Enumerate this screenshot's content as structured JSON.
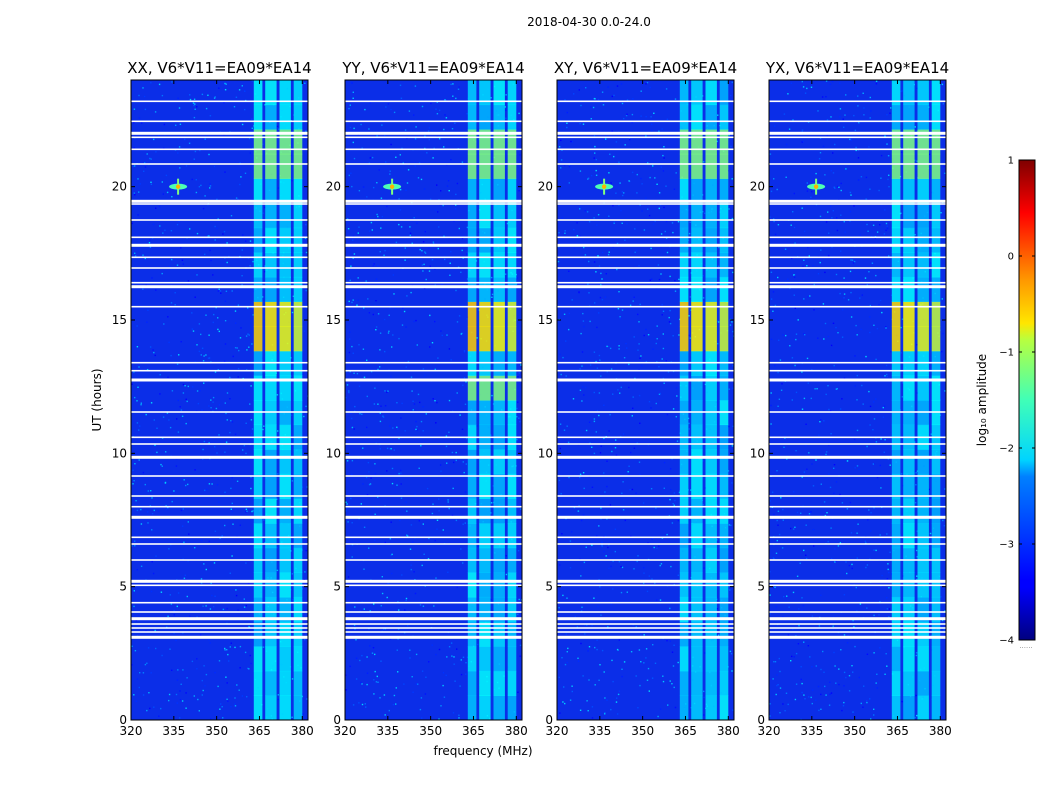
{
  "figure": {
    "suptitle": "2018-04-30 0.0-24.0"
  },
  "chart_data": {
    "type": "heatmap",
    "suptitle": "2018-04-30 0.0-24.0",
    "xlabel": "frequency (MHz)",
    "ylabel": "UT (hours)",
    "xlim": [
      320,
      382
    ],
    "ylim": [
      0,
      24
    ],
    "x_ticks": [
      "320",
      "335",
      "350",
      "365",
      "380"
    ],
    "y_ticks": [
      "0",
      "5",
      "10",
      "15",
      "20"
    ],
    "panels": [
      {
        "title": "XX, V6*V11=EA09*EA14",
        "intensity": 1.0
      },
      {
        "title": "YY, V6*V11=EA09*EA14",
        "intensity": 1.05
      },
      {
        "title": "XY, V6*V11=EA09*EA14",
        "intensity": 0.95
      },
      {
        "title": "YX, V6*V11=EA09*EA14",
        "intensity": 0.9
      }
    ],
    "colorbar": {
      "label": "log₁₀ amplitude",
      "range": [
        -4,
        1
      ],
      "ticks": [
        "1",
        "0",
        "−1",
        "−2",
        "−3",
        "−4"
      ],
      "colormap": "jet",
      "footnote": "......"
    },
    "rfi_bands_mhz": [
      [
        363,
        366
      ],
      [
        367,
        371
      ],
      [
        372,
        376
      ],
      [
        377,
        380
      ]
    ],
    "flagged_ut_hours": [
      3.1,
      3.3,
      3.45,
      3.6,
      3.8,
      4.05,
      4.4,
      5.05,
      5.2,
      6.0,
      6.6,
      6.85,
      7.6,
      8.0,
      8.4,
      9.15,
      9.85,
      10.35,
      10.6,
      11.55,
      12.75,
      13.1,
      13.4,
      15.5,
      16.25,
      16.4,
      16.95,
      17.35,
      17.8,
      18.1,
      18.75,
      19.35,
      19.45,
      20.85,
      21.4,
      21.85,
      22.0,
      22.45,
      23.2
    ],
    "sources": [
      {
        "freq_mhz": 336.5,
        "ut_hours": 20.0
      }
    ]
  }
}
